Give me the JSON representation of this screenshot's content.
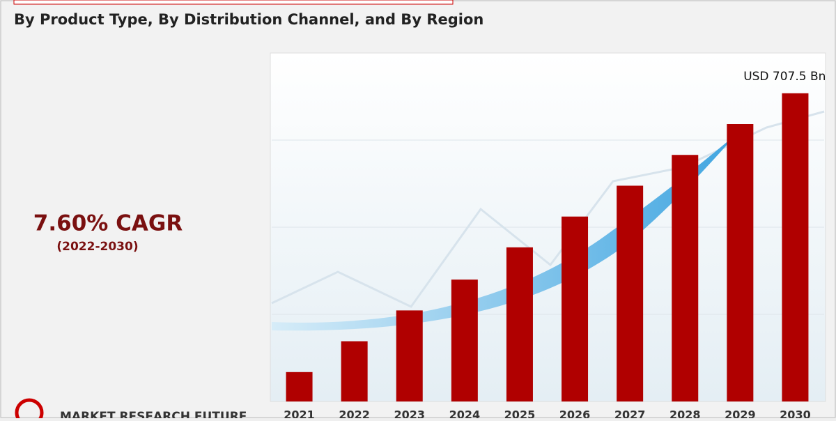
{
  "chart_data": {
    "type": "bar",
    "subtitle": "By Product Type, By Distribution Channel, and By Region",
    "cagr": "7.60% CAGR",
    "cagr_period": "(2022-2030)",
    "brand": "MARKET RESEARCH FUTURE",
    "categories": [
      "2021",
      "2022",
      "2023",
      "2024",
      "2025",
      "2026",
      "2027",
      "2028",
      "2029",
      "2030"
    ],
    "values": [
      67.5,
      138.3,
      209.0,
      279.8,
      353.8,
      424.5,
      495.3,
      566.0,
      636.8,
      707.5
    ],
    "value_labels": [
      null,
      null,
      null,
      null,
      null,
      null,
      null,
      null,
      null,
      "USD 707.5 Bn"
    ],
    "color": "#b00000",
    "ylim": [
      0,
      800
    ]
  }
}
